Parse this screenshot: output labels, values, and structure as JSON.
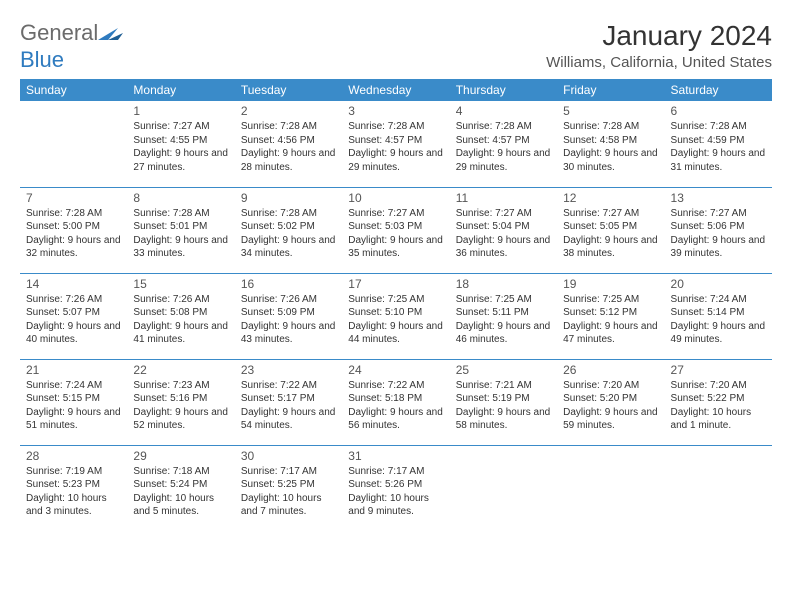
{
  "brand": {
    "word1": "General",
    "word2": "Blue"
  },
  "title": "January 2024",
  "location": "Williams, California, United States",
  "colors": {
    "header_bg": "#3a8bc9",
    "header_fg": "#ffffff",
    "brand_gray": "#6b6b6b",
    "brand_blue": "#2f7bbf",
    "rule": "#3a8bc9"
  },
  "weekday_labels": [
    "Sunday",
    "Monday",
    "Tuesday",
    "Wednesday",
    "Thursday",
    "Friday",
    "Saturday"
  ],
  "weeks": [
    [
      null,
      {
        "n": "1",
        "sunrise": "7:27 AM",
        "sunset": "4:55 PM",
        "daylight": "9 hours and 27 minutes."
      },
      {
        "n": "2",
        "sunrise": "7:28 AM",
        "sunset": "4:56 PM",
        "daylight": "9 hours and 28 minutes."
      },
      {
        "n": "3",
        "sunrise": "7:28 AM",
        "sunset": "4:57 PM",
        "daylight": "9 hours and 29 minutes."
      },
      {
        "n": "4",
        "sunrise": "7:28 AM",
        "sunset": "4:57 PM",
        "daylight": "9 hours and 29 minutes."
      },
      {
        "n": "5",
        "sunrise": "7:28 AM",
        "sunset": "4:58 PM",
        "daylight": "9 hours and 30 minutes."
      },
      {
        "n": "6",
        "sunrise": "7:28 AM",
        "sunset": "4:59 PM",
        "daylight": "9 hours and 31 minutes."
      }
    ],
    [
      {
        "n": "7",
        "sunrise": "7:28 AM",
        "sunset": "5:00 PM",
        "daylight": "9 hours and 32 minutes."
      },
      {
        "n": "8",
        "sunrise": "7:28 AM",
        "sunset": "5:01 PM",
        "daylight": "9 hours and 33 minutes."
      },
      {
        "n": "9",
        "sunrise": "7:28 AM",
        "sunset": "5:02 PM",
        "daylight": "9 hours and 34 minutes."
      },
      {
        "n": "10",
        "sunrise": "7:27 AM",
        "sunset": "5:03 PM",
        "daylight": "9 hours and 35 minutes."
      },
      {
        "n": "11",
        "sunrise": "7:27 AM",
        "sunset": "5:04 PM",
        "daylight": "9 hours and 36 minutes."
      },
      {
        "n": "12",
        "sunrise": "7:27 AM",
        "sunset": "5:05 PM",
        "daylight": "9 hours and 38 minutes."
      },
      {
        "n": "13",
        "sunrise": "7:27 AM",
        "sunset": "5:06 PM",
        "daylight": "9 hours and 39 minutes."
      }
    ],
    [
      {
        "n": "14",
        "sunrise": "7:26 AM",
        "sunset": "5:07 PM",
        "daylight": "9 hours and 40 minutes."
      },
      {
        "n": "15",
        "sunrise": "7:26 AM",
        "sunset": "5:08 PM",
        "daylight": "9 hours and 41 minutes."
      },
      {
        "n": "16",
        "sunrise": "7:26 AM",
        "sunset": "5:09 PM",
        "daylight": "9 hours and 43 minutes."
      },
      {
        "n": "17",
        "sunrise": "7:25 AM",
        "sunset": "5:10 PM",
        "daylight": "9 hours and 44 minutes."
      },
      {
        "n": "18",
        "sunrise": "7:25 AM",
        "sunset": "5:11 PM",
        "daylight": "9 hours and 46 minutes."
      },
      {
        "n": "19",
        "sunrise": "7:25 AM",
        "sunset": "5:12 PM",
        "daylight": "9 hours and 47 minutes."
      },
      {
        "n": "20",
        "sunrise": "7:24 AM",
        "sunset": "5:14 PM",
        "daylight": "9 hours and 49 minutes."
      }
    ],
    [
      {
        "n": "21",
        "sunrise": "7:24 AM",
        "sunset": "5:15 PM",
        "daylight": "9 hours and 51 minutes."
      },
      {
        "n": "22",
        "sunrise": "7:23 AM",
        "sunset": "5:16 PM",
        "daylight": "9 hours and 52 minutes."
      },
      {
        "n": "23",
        "sunrise": "7:22 AM",
        "sunset": "5:17 PM",
        "daylight": "9 hours and 54 minutes."
      },
      {
        "n": "24",
        "sunrise": "7:22 AM",
        "sunset": "5:18 PM",
        "daylight": "9 hours and 56 minutes."
      },
      {
        "n": "25",
        "sunrise": "7:21 AM",
        "sunset": "5:19 PM",
        "daylight": "9 hours and 58 minutes."
      },
      {
        "n": "26",
        "sunrise": "7:20 AM",
        "sunset": "5:20 PM",
        "daylight": "9 hours and 59 minutes."
      },
      {
        "n": "27",
        "sunrise": "7:20 AM",
        "sunset": "5:22 PM",
        "daylight": "10 hours and 1 minute."
      }
    ],
    [
      {
        "n": "28",
        "sunrise": "7:19 AM",
        "sunset": "5:23 PM",
        "daylight": "10 hours and 3 minutes."
      },
      {
        "n": "29",
        "sunrise": "7:18 AM",
        "sunset": "5:24 PM",
        "daylight": "10 hours and 5 minutes."
      },
      {
        "n": "30",
        "sunrise": "7:17 AM",
        "sunset": "5:25 PM",
        "daylight": "10 hours and 7 minutes."
      },
      {
        "n": "31",
        "sunrise": "7:17 AM",
        "sunset": "5:26 PM",
        "daylight": "10 hours and 9 minutes."
      },
      null,
      null,
      null
    ]
  ],
  "labels": {
    "sunrise": "Sunrise:",
    "sunset": "Sunset:",
    "daylight": "Daylight:"
  }
}
